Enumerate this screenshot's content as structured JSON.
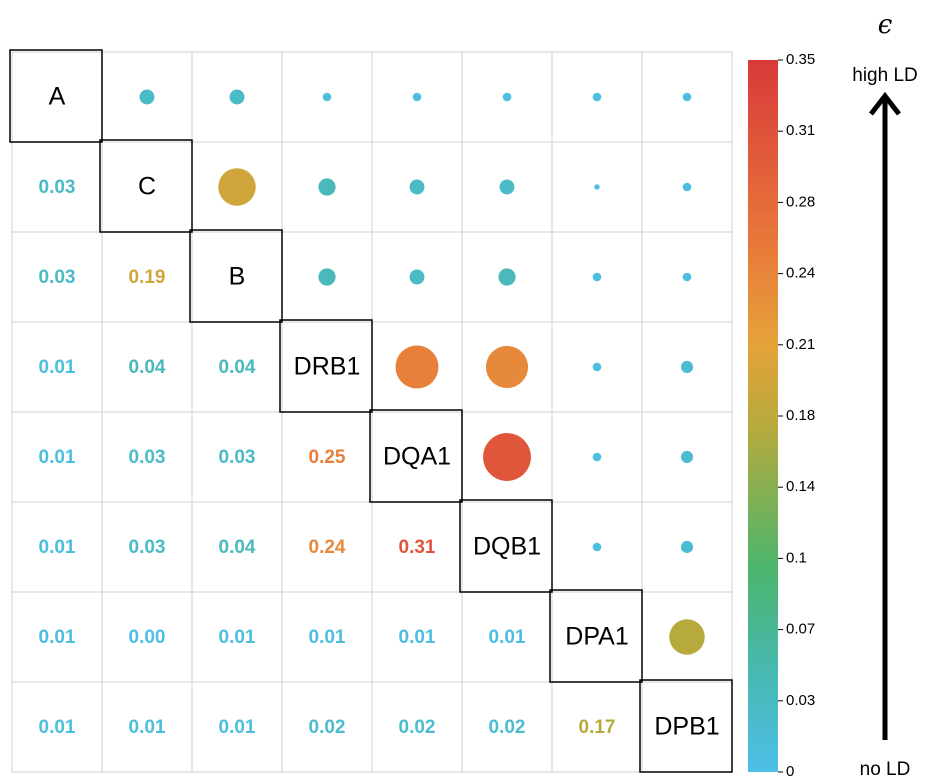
{
  "chart_data": {
    "type": "corrplot",
    "labels": [
      "A",
      "C",
      "B",
      "DRB1",
      "DQA1",
      "DQB1",
      "DPA1",
      "DPB1"
    ],
    "values": [
      [
        null,
        null,
        null,
        null,
        null,
        null,
        null,
        null
      ],
      [
        0.03,
        null,
        null,
        null,
        null,
        null,
        null,
        null
      ],
      [
        0.03,
        0.19,
        null,
        null,
        null,
        null,
        null,
        null
      ],
      [
        0.01,
        0.04,
        0.04,
        null,
        null,
        null,
        null,
        null
      ],
      [
        0.01,
        0.03,
        0.03,
        0.25,
        null,
        null,
        null,
        null
      ],
      [
        0.01,
        0.03,
        0.04,
        0.24,
        0.31,
        null,
        null,
        null
      ],
      [
        0.01,
        0.004,
        0.01,
        0.01,
        0.01,
        0.01,
        null,
        null
      ],
      [
        0.01,
        0.01,
        0.01,
        0.02,
        0.02,
        0.02,
        0.17,
        null
      ]
    ],
    "value_labels": [
      [
        null,
        null,
        null,
        null,
        null,
        null,
        null,
        null
      ],
      [
        "0.03",
        null,
        null,
        null,
        null,
        null,
        null,
        null
      ],
      [
        "0.03",
        "0.19",
        null,
        null,
        null,
        null,
        null,
        null
      ],
      [
        "0.01",
        "0.04",
        "0.04",
        null,
        null,
        null,
        null,
        null
      ],
      [
        "0.01",
        "0.03",
        "0.03",
        "0.25",
        null,
        null,
        null,
        null
      ],
      [
        "0.01",
        "0.03",
        "0.04",
        "0.24",
        "0.31",
        null,
        null,
        null
      ],
      [
        "0.01",
        "0.00",
        "0.01",
        "0.01",
        "0.01",
        "0.01",
        null,
        null
      ],
      [
        "0.01",
        "0.01",
        "0.01",
        "0.02",
        "0.02",
        "0.02",
        "0.17",
        null
      ]
    ],
    "clim": [
      0,
      0.35
    ],
    "cticks": [
      0,
      {
        "value": 0.035,
        "label": "0.03"
      },
      0.07,
      {
        "value": 0.105,
        "label": "0.1"
      },
      0.14,
      {
        "value": 0.175,
        "label": "0.18"
      },
      0.21,
      {
        "value": 0.245,
        "label": "0.24"
      },
      0.28,
      {
        "value": 0.315,
        "label": "0.31"
      },
      0.35
    ],
    "colorscale": [
      {
        "value": 0,
        "color": "#4dbfe9"
      },
      {
        "value": 0.05,
        "color": "#48b8b0"
      },
      {
        "value": 0.1,
        "color": "#4bb56c"
      },
      {
        "value": 0.17,
        "color": "#b7aa3c"
      },
      {
        "value": 0.21,
        "color": "#e5a23a"
      },
      {
        "value": 0.26,
        "color": "#e8783a"
      },
      {
        "value": 0.35,
        "color": "#d83a3a"
      }
    ],
    "annotations": [
      "ϵ",
      "high LD",
      "no LD"
    ]
  }
}
